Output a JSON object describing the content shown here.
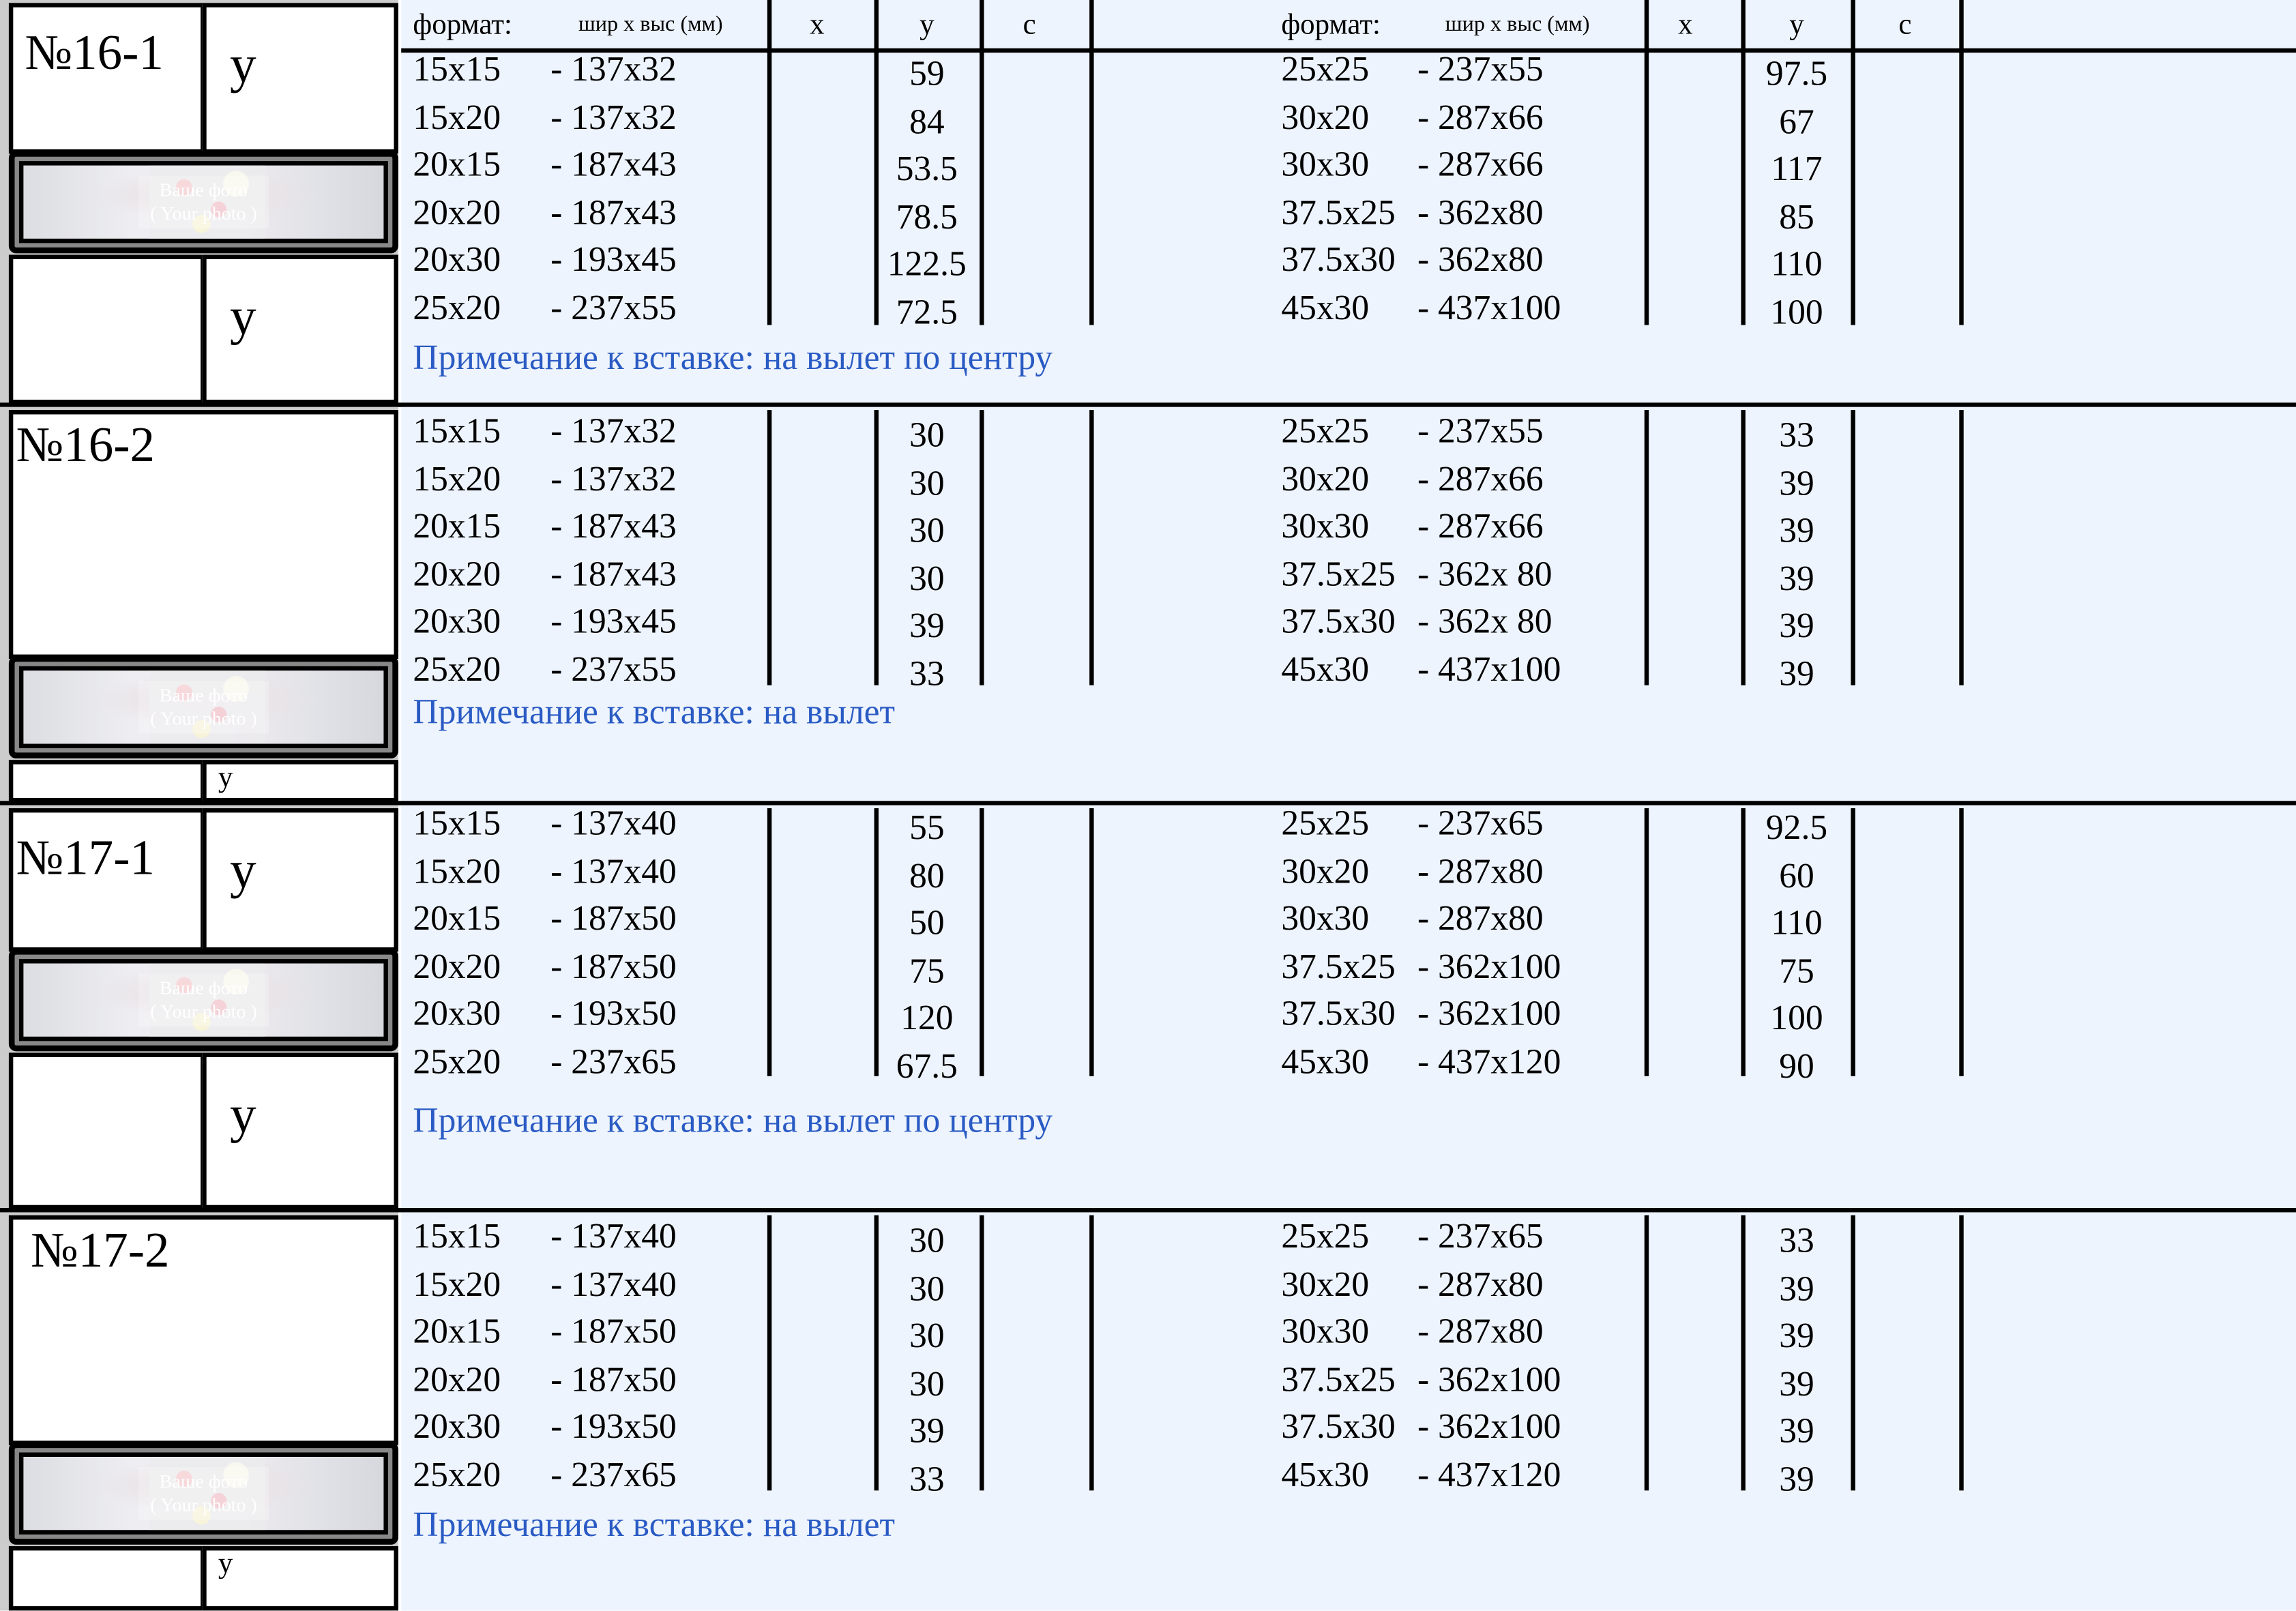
{
  "header": {
    "format": "формат:",
    "size": "шир х выс (мм)",
    "x": "x",
    "y": "y",
    "c": "c"
  },
  "photo_placeholder": {
    "line1": "Ваше фото",
    "line2": "( Your photo )"
  },
  "sections": [
    {
      "id": "№16-1",
      "layout": "two-y",
      "y_labels": [
        "y",
        "y"
      ],
      "left_rows": [
        [
          "15x15",
          "- 137x32",
          "59"
        ],
        [
          "15x20",
          "- 137x32",
          "84"
        ],
        [
          "20x15",
          "- 187x43",
          "53.5"
        ],
        [
          "20x20",
          "- 187x43",
          "78.5"
        ],
        [
          "20x30",
          "- 193x45",
          "122.5"
        ],
        [
          "25x20",
          "- 237x55",
          "72.5"
        ]
      ],
      "right_rows": [
        [
          "25x25",
          "- 237x55",
          "97.5"
        ],
        [
          "30x20",
          "- 287x66",
          "67"
        ],
        [
          "30x30",
          "- 287x66",
          "117"
        ],
        [
          "37.5x25",
          "- 362x80",
          "85"
        ],
        [
          "37.5x30",
          "- 362x80",
          "110"
        ],
        [
          "45x30",
          "- 437x100",
          "100"
        ]
      ],
      "note": "Примечание к вставке: на вылет по центру"
    },
    {
      "id": "№16-2",
      "layout": "one-y",
      "y_labels": [
        "y"
      ],
      "left_rows": [
        [
          "15x15",
          "- 137x32",
          "30"
        ],
        [
          "15x20",
          "- 137x32",
          "30"
        ],
        [
          "20x15",
          "- 187x43",
          "30"
        ],
        [
          "20x20",
          "- 187x43",
          "30"
        ],
        [
          "20x30",
          "- 193x45",
          "39"
        ],
        [
          "25x20",
          "- 237x55",
          "33"
        ]
      ],
      "right_rows": [
        [
          "25x25",
          "- 237x55",
          "33"
        ],
        [
          "30x20",
          "- 287x66",
          "39"
        ],
        [
          "30x30",
          "- 287x66",
          "39"
        ],
        [
          "37.5x25",
          "- 362x 80",
          "39"
        ],
        [
          "37.5x30",
          "- 362x 80",
          "39"
        ],
        [
          "45x30",
          "- 437x100",
          "39"
        ]
      ],
      "note": "Примечание к вставке: на вылет"
    },
    {
      "id": "№17-1",
      "layout": "two-y",
      "y_labels": [
        "y",
        "y"
      ],
      "left_rows": [
        [
          "15x15",
          "- 137x40",
          "55"
        ],
        [
          "15x20",
          "- 137x40",
          "80"
        ],
        [
          "20x15",
          "- 187x50",
          "50"
        ],
        [
          "20x20",
          "- 187x50",
          "75"
        ],
        [
          "20x30",
          "- 193x50",
          "120"
        ],
        [
          "25x20",
          "- 237x65",
          "67.5"
        ]
      ],
      "right_rows": [
        [
          "25x25",
          "- 237x65",
          "92.5"
        ],
        [
          "30x20",
          "- 287x80",
          "60"
        ],
        [
          "30x30",
          "- 287x80",
          "110"
        ],
        [
          "37.5x25",
          "- 362x100",
          "75"
        ],
        [
          "37.5x30",
          "- 362x100",
          "100"
        ],
        [
          "45x30",
          "- 437x120",
          "90"
        ]
      ],
      "note": "Примечание к вставке: на вылет по центру"
    },
    {
      "id": "№17-2",
      "layout": "one-y",
      "y_labels": [
        "y"
      ],
      "left_rows": [
        [
          "15x15",
          "- 137x40",
          "30"
        ],
        [
          "15x20",
          "- 137x40",
          "30"
        ],
        [
          "20x15",
          "- 187x50",
          "30"
        ],
        [
          "20x20",
          "- 187x50",
          "30"
        ],
        [
          "20x30",
          "- 193x50",
          "39"
        ],
        [
          "25x20",
          "- 237x65",
          "33"
        ]
      ],
      "right_rows": [
        [
          "25x25",
          "- 237x65",
          "33"
        ],
        [
          "30x20",
          "- 287x80",
          "39"
        ],
        [
          "30x30",
          "- 287x80",
          "39"
        ],
        [
          "37.5x25",
          "- 362x100",
          "39"
        ],
        [
          "37.5x30",
          "- 362x100",
          "39"
        ],
        [
          "45x30",
          "- 437x120",
          "39"
        ]
      ],
      "note": "Примечание к вставке: на вылет"
    }
  ],
  "colors": {
    "table_bg": "#eef4fd",
    "note": "#2a5bc4",
    "rule": "#000000"
  }
}
